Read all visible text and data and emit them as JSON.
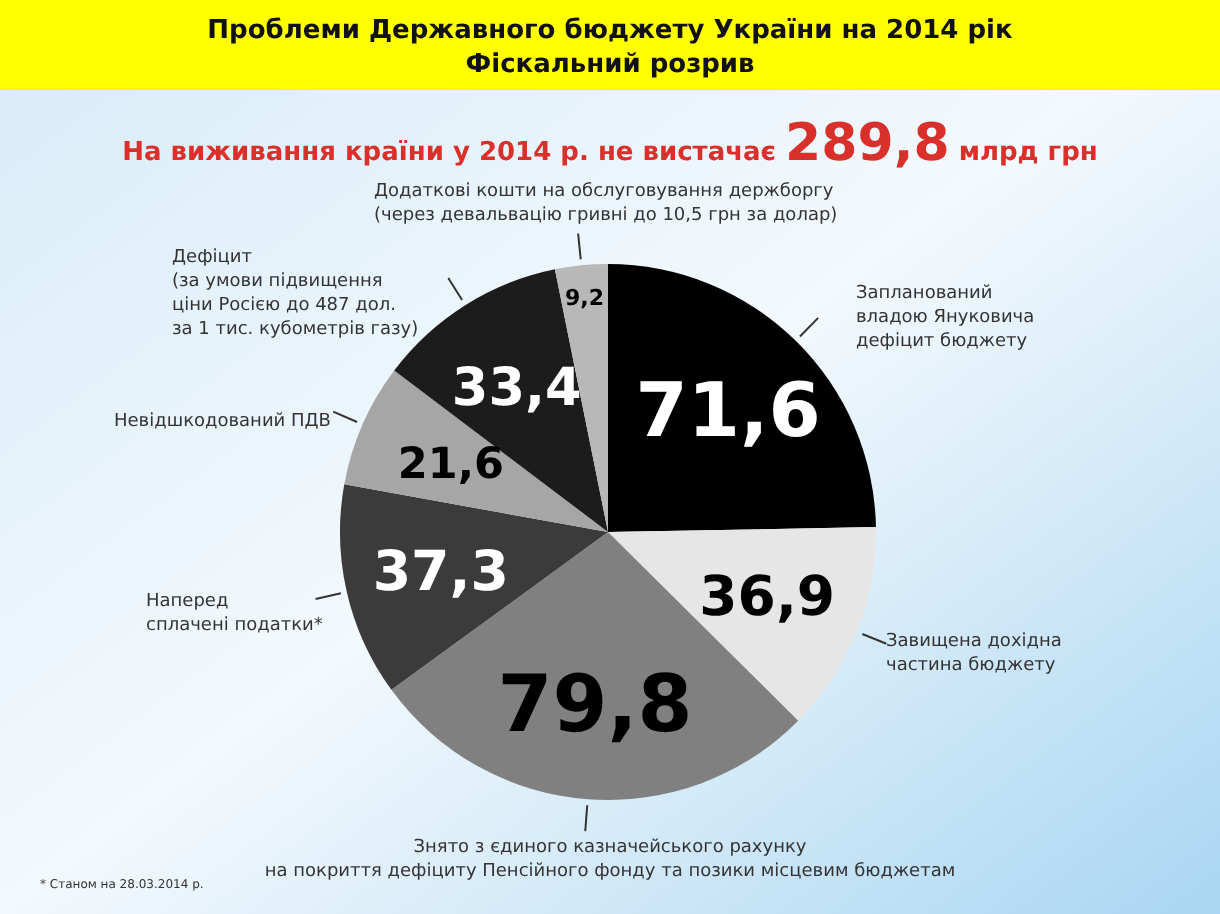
{
  "chart_data": {
    "type": "pie",
    "title": "Проблеми Державного бюджету України на 2014 рік\nФіскальний розрив",
    "subtitle": "На виживання країни у 2014 р. не вистачає 289,8 млрд грн",
    "categories": [
      "Запланований\nвладою Януковича\nдефіцит бюджету",
      "Завищена дохідна\nчастина бюджету",
      "Знято з єдиного казначейського рахунку\nна покриття дефіциту Пенсійного фонду та позики місцевим бюджетам",
      "Наперед\nсплачені податки*",
      "Невідшкодований ПДВ",
      "Дефіцит\n(за умови підвищення\nціни Росією до 487 дол.\nза 1 тис. кубометрів газу)",
      "Додаткові кошти на обслуговування держборгу\n(через девальвацію гривні до 10,5 грн за долар)"
    ],
    "values": [
      71.6,
      36.9,
      79.8,
      37.3,
      21.6,
      33.4,
      9.2
    ],
    "value_labels": [
      "71,6",
      "36,9",
      "79,8",
      "37,3",
      "21,6",
      "33,4",
      "9,2"
    ],
    "colors": [
      "#000000",
      "#e6e6e6",
      "#808080",
      "#3b3b3b",
      "#a6a6a6",
      "#1c1c1c",
      "#b8b8b8"
    ],
    "annotations": [
      "* Станом на 28.03.2014 р."
    ]
  }
}
